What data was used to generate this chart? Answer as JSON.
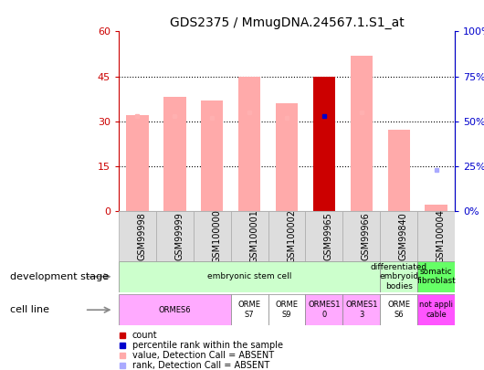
{
  "title": "GDS2375 / MmugDNA.24567.1.S1_at",
  "samples": [
    "GSM99998",
    "GSM99999",
    "GSM100000",
    "GSM100001",
    "GSM100002",
    "GSM99965",
    "GSM99966",
    "GSM99840",
    "GSM100004"
  ],
  "bar_values": [
    32,
    38,
    37,
    45,
    36,
    45,
    52,
    27,
    2
  ],
  "bar_colors": [
    "#ffaaaa",
    "#ffaaaa",
    "#ffaaaa",
    "#ffaaaa",
    "#ffaaaa",
    "#cc0000",
    "#ffaaaa",
    "#ffaaaa",
    "#ffaaaa"
  ],
  "rank_values": [
    53,
    53,
    52,
    55,
    52,
    53,
    55,
    0,
    23
  ],
  "has_rank_marker": [
    true,
    true,
    true,
    true,
    true,
    true,
    true,
    false,
    true
  ],
  "rank_marker_colors": [
    "#ffb0b0",
    "#ffb0b0",
    "#ffb0b0",
    "#ffb0b0",
    "#ffb0b0",
    "#0000cc",
    "#ffb0b0",
    "#ffb0b0",
    "#aaaaff"
  ],
  "ylim_left": [
    0,
    60
  ],
  "ylim_right": [
    0,
    100
  ],
  "yticks_left": [
    0,
    15,
    30,
    45,
    60
  ],
  "yticks_right": [
    0,
    25,
    50,
    75,
    100
  ],
  "ytick_labels_right": [
    "0%",
    "25%",
    "50%",
    "75%",
    "100%"
  ],
  "development_stage_groups": [
    {
      "label": "embryonic stem cell",
      "start": 0,
      "end": 7,
      "color": "#ccffcc"
    },
    {
      "label": "differentiated\nembryoid\nbodies",
      "start": 7,
      "end": 8,
      "color": "#ccffcc"
    },
    {
      "label": "somatic\nfibroblast",
      "start": 8,
      "end": 9,
      "color": "#66ff66"
    }
  ],
  "cell_line_groups": [
    {
      "label": "ORMES6",
      "start": 0,
      "end": 3,
      "color": "#ffaaff"
    },
    {
      "label": "ORME\nS7",
      "start": 3,
      "end": 4,
      "color": "#ffffff"
    },
    {
      "label": "ORME\nS9",
      "start": 4,
      "end": 5,
      "color": "#ffffff"
    },
    {
      "label": "ORMES1\n0",
      "start": 5,
      "end": 6,
      "color": "#ffaaff"
    },
    {
      "label": "ORMES1\n3",
      "start": 6,
      "end": 7,
      "color": "#ffaaff"
    },
    {
      "label": "ORME\nS6",
      "start": 7,
      "end": 8,
      "color": "#ffffff"
    },
    {
      "label": "not appli\ncable",
      "start": 8,
      "end": 9,
      "color": "#ff55ff"
    }
  ],
  "legend_items": [
    {
      "label": "count",
      "color": "#cc0000"
    },
    {
      "label": "percentile rank within the sample",
      "color": "#0000cc"
    },
    {
      "label": "value, Detection Call = ABSENT",
      "color": "#ffaaaa"
    },
    {
      "label": "rank, Detection Call = ABSENT",
      "color": "#aaaaff"
    }
  ],
  "left_labels": [
    "development stage",
    "cell line"
  ],
  "axis_color_left": "#cc0000",
  "axis_color_right": "#0000cc"
}
